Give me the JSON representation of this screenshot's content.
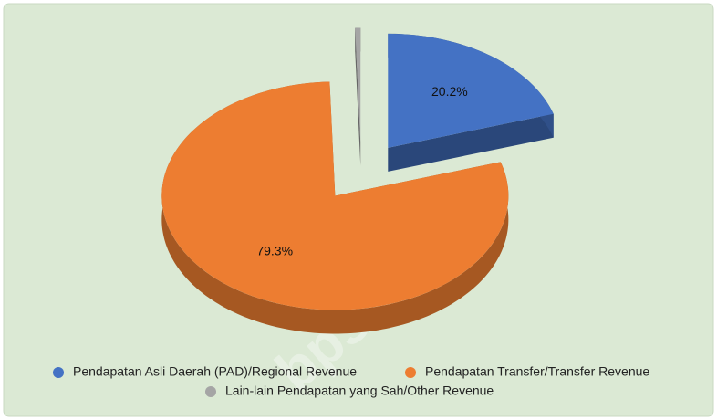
{
  "chart_data": {
    "type": "pie3d",
    "categories": [
      "Pendapatan Asli Daerah (PAD)/Regional Revenue",
      "Pendapatan Transfer/Transfer Revenue",
      "Lain-lain Pendapatan yang Sah/Other Revenue"
    ],
    "values": [
      20.2,
      79.3,
      0.5
    ],
    "value_labels": [
      "20.2%",
      "79.3%",
      null
    ],
    "colors": [
      "#4472c4",
      "#ed7d31",
      "#a5a5a5"
    ],
    "legend": "bottom",
    "watermark": "bps.go.id"
  }
}
